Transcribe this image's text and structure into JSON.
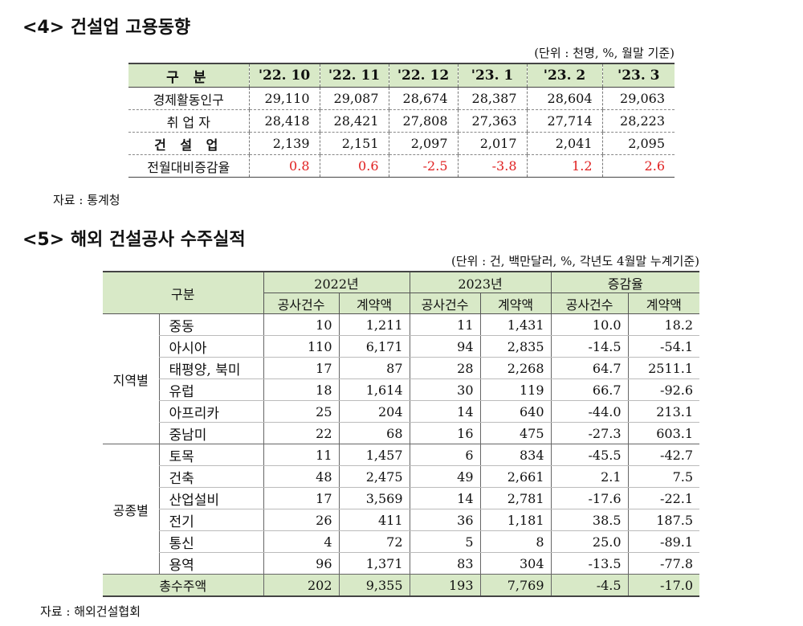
{
  "section4": {
    "title": "<4> 건설업 고용동향",
    "unit": "(단위 : 천명, %, 월말 기준)",
    "header_label": "구 분",
    "columns": [
      "'22. 10",
      "'22. 11",
      "'22. 12",
      "'23. 1",
      "'23. 2",
      "'23. 3"
    ],
    "rows": [
      {
        "label": "경제활동인구",
        "values": [
          "29,110",
          "29,087",
          "28,674",
          "28,387",
          "28,604",
          "29,063"
        ]
      },
      {
        "label": "취 업 자",
        "values": [
          "28,418",
          "28,421",
          "27,808",
          "27,363",
          "27,714",
          "28,223"
        ]
      },
      {
        "label": "건 설 업",
        "values": [
          "2,139",
          "2,151",
          "2,097",
          "2,017",
          "2,041",
          "2,095"
        ]
      },
      {
        "label": "전월대비증감율",
        "values": [
          "0.8",
          "0.6",
          "-2.5",
          "-3.8",
          "1.2",
          "2.6"
        ]
      }
    ],
    "accent_color": "#e02020",
    "source": "자료 : 통계청"
  },
  "section5": {
    "title": "<5> 해외 건설공사 수주실적",
    "unit": "(단위 : 건, 백만달러, %, 각년도 4월말 누계기준)",
    "header_label": "구분",
    "year_groups": [
      "2022년",
      "2023년",
      "증감율"
    ],
    "sub_headers": [
      "공사건수",
      "계약액",
      "공사건수",
      "계약액",
      "공사건수",
      "계약액"
    ],
    "groups": [
      {
        "name": "지역별",
        "rows": [
          {
            "label": "중동",
            "values": [
              "10",
              "1,211",
              "11",
              "1,431",
              "10.0",
              "18.2"
            ]
          },
          {
            "label": "아시아",
            "values": [
              "110",
              "6,171",
              "94",
              "2,835",
              "-14.5",
              "-54.1"
            ]
          },
          {
            "label": "태평양, 북미",
            "values": [
              "17",
              "87",
              "28",
              "2,268",
              "64.7",
              "2511.1"
            ]
          },
          {
            "label": "유럽",
            "values": [
              "18",
              "1,614",
              "30",
              "119",
              "66.7",
              "-92.6"
            ]
          },
          {
            "label": "아프리카",
            "values": [
              "25",
              "204",
              "14",
              "640",
              "-44.0",
              "213.1"
            ]
          },
          {
            "label": "중남미",
            "values": [
              "22",
              "68",
              "16",
              "475",
              "-27.3",
              "603.1"
            ]
          }
        ]
      },
      {
        "name": "공종별",
        "rows": [
          {
            "label": "토목",
            "values": [
              "11",
              "1,457",
              "6",
              "834",
              "-45.5",
              "-42.7"
            ]
          },
          {
            "label": "건축",
            "values": [
              "48",
              "2,475",
              "49",
              "2,661",
              "2.1",
              "7.5"
            ]
          },
          {
            "label": "산업설비",
            "values": [
              "17",
              "3,569",
              "14",
              "2,781",
              "-17.6",
              "-22.1"
            ]
          },
          {
            "label": "전기",
            "values": [
              "26",
              "411",
              "36",
              "1,181",
              "38.5",
              "187.5"
            ]
          },
          {
            "label": "통신",
            "values": [
              "4",
              "72",
              "5",
              "8",
              "25.0",
              "-89.1"
            ]
          },
          {
            "label": "용역",
            "values": [
              "96",
              "1,371",
              "83",
              "304",
              "-13.5",
              "-77.8"
            ]
          }
        ]
      }
    ],
    "total": {
      "label": "총수주액",
      "values": [
        "202",
        "9,355",
        "193",
        "7,769",
        "-4.5",
        "-17.0"
      ]
    },
    "source": "자료 : 해외건설협회"
  }
}
